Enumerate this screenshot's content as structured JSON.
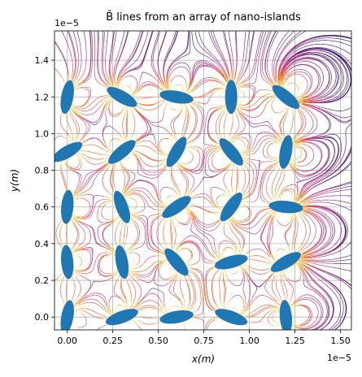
{
  "chart_data": {
    "type": "streamplot",
    "title": "B̄ lines from an array of nano-islands",
    "xlabel": "x(m)",
    "ylabel": "y(m)",
    "x_offset_label": "1e−5",
    "y_offset_label": "1e−5",
    "xlim": [
      -0.07,
      1.56
    ],
    "ylim": [
      -0.07,
      1.56
    ],
    "x_ticks": [
      0.0,
      0.25,
      0.5,
      0.75,
      1.0,
      1.25,
      1.5
    ],
    "x_tick_labels": [
      "0.00",
      "0.25",
      "0.50",
      "0.75",
      "1.00",
      "1.25",
      "1.50"
    ],
    "y_ticks": [
      0.0,
      0.2,
      0.4,
      0.6,
      0.8,
      1.0,
      1.2,
      1.4
    ],
    "y_tick_labels": [
      "0.0",
      "0.2",
      "0.4",
      "0.6",
      "0.8",
      "1.0",
      "1.2",
      "1.4"
    ],
    "grid": true,
    "island_color": "#1f77b4",
    "colormap": [
      "#3b0f70",
      "#6a176e",
      "#9c2e7f",
      "#c83e73",
      "#e55c30",
      "#f1a340",
      "#fcdf8a"
    ],
    "islands": [
      {
        "x": 0.0,
        "y": 0.0,
        "angle": 80
      },
      {
        "x": 0.3,
        "y": 0.0,
        "angle": 20
      },
      {
        "x": 0.6,
        "y": 0.0,
        "angle": 10
      },
      {
        "x": 0.9,
        "y": 0.0,
        "angle": 160
      },
      {
        "x": 1.2,
        "y": 0.0,
        "angle": 95
      },
      {
        "x": 0.0,
        "y": 0.3,
        "angle": 95
      },
      {
        "x": 0.3,
        "y": 0.3,
        "angle": 100
      },
      {
        "x": 0.6,
        "y": 0.3,
        "angle": 130
      },
      {
        "x": 0.9,
        "y": 0.3,
        "angle": 15
      },
      {
        "x": 1.2,
        "y": 0.3,
        "angle": 30
      },
      {
        "x": 0.0,
        "y": 0.6,
        "angle": 85
      },
      {
        "x": 0.3,
        "y": 0.6,
        "angle": 110
      },
      {
        "x": 0.6,
        "y": 0.6,
        "angle": 35
      },
      {
        "x": 0.9,
        "y": 0.6,
        "angle": 55
      },
      {
        "x": 1.2,
        "y": 0.6,
        "angle": 175
      },
      {
        "x": 0.0,
        "y": 0.9,
        "angle": 30
      },
      {
        "x": 0.3,
        "y": 0.9,
        "angle": 40
      },
      {
        "x": 0.6,
        "y": 0.9,
        "angle": 60
      },
      {
        "x": 0.9,
        "y": 0.9,
        "angle": 130
      },
      {
        "x": 1.2,
        "y": 0.9,
        "angle": 80
      },
      {
        "x": 0.0,
        "y": 1.2,
        "angle": 80
      },
      {
        "x": 0.3,
        "y": 1.2,
        "angle": 150
      },
      {
        "x": 0.6,
        "y": 1.2,
        "angle": 170
      },
      {
        "x": 0.9,
        "y": 1.2,
        "angle": 90
      },
      {
        "x": 1.2,
        "y": 1.2,
        "angle": 140
      }
    ]
  }
}
